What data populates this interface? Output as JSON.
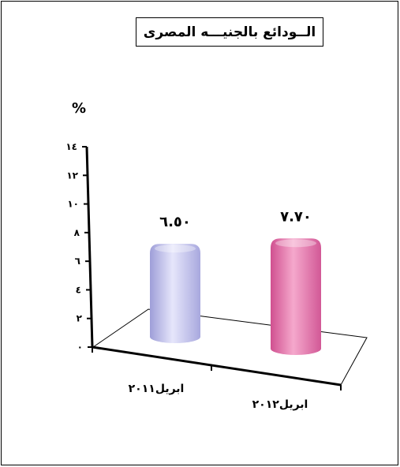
{
  "chart_data": {
    "type": "bar",
    "title": "الــودائع بالجنيـــه المصرى",
    "ylabel": "%",
    "ylim": [
      0,
      14
    ],
    "yticks": [
      0,
      2,
      4,
      6,
      8,
      10,
      12,
      14
    ],
    "ytick_labels": [
      "٠",
      "٢",
      "٤",
      "٦",
      "٨",
      "١٠",
      "١٢",
      "١٤"
    ],
    "categories": [
      "ابريل٢٠١١",
      "ابريل٢٠١٢"
    ],
    "values": [
      6.5,
      7.7
    ],
    "data_labels": [
      "٦.٥٠",
      "٧.٧٠"
    ],
    "colors": [
      "#c8c8f0",
      "#e870a8"
    ],
    "grid": false,
    "style": "3d-cylinder"
  }
}
